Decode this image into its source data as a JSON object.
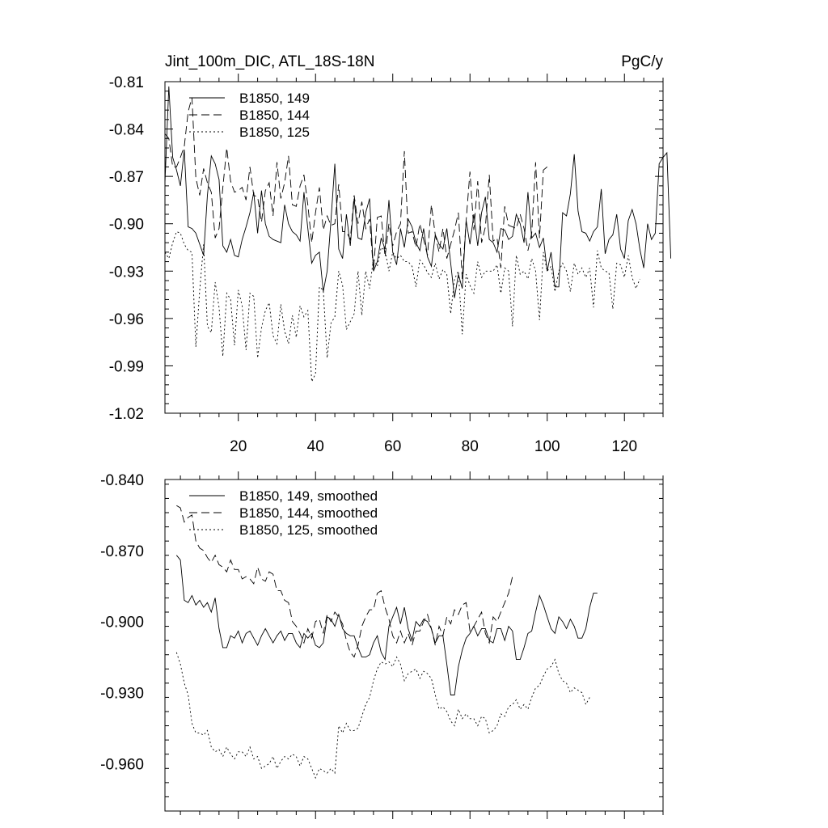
{
  "chart_data": [
    {
      "type": "line",
      "title_left": "Jint_100m_DIC, ATL_18S-18N",
      "title_right": "PgC/y",
      "xlim": [
        1,
        130
      ],
      "ylim": [
        -1.02,
        -0.81
      ],
      "yticks": [
        -0.81,
        -0.84,
        -0.87,
        -0.9,
        -0.93,
        -0.96,
        -0.99,
        -1.02
      ],
      "ytick_labels": [
        "-0.81",
        "-0.84",
        "-0.87",
        "-0.90",
        "-0.93",
        "-0.96",
        "-0.99",
        "-1.02"
      ],
      "xticks": [
        20,
        40,
        60,
        80,
        100,
        120
      ],
      "xtick_labels": [
        "20",
        "40",
        "60",
        "80",
        "100",
        "120"
      ],
      "legend_position": "top-left",
      "series": [
        {
          "name": "B1850, 149",
          "style": "solid",
          "x_start": 1,
          "values": [
            -0.874,
            -0.813,
            -0.858,
            -0.866,
            -0.876,
            -0.853,
            -0.902,
            -0.903,
            -0.906,
            -0.913,
            -0.92,
            -0.882,
            -0.857,
            -0.862,
            -0.872,
            -0.914,
            -0.918,
            -0.91,
            -0.92,
            -0.921,
            -0.91,
            -0.902,
            -0.893,
            -0.88,
            -0.906,
            -0.879,
            -0.9,
            -0.908,
            -0.91,
            -0.911,
            -0.912,
            -0.888,
            -0.9,
            -0.905,
            -0.907,
            -0.911,
            -0.88,
            -0.903,
            -0.925,
            -0.92,
            -0.918,
            -0.943,
            -0.93,
            -0.898,
            -0.862,
            -0.916,
            -0.922,
            -0.894,
            -0.914,
            -0.884,
            -0.909,
            -0.91,
            -0.893,
            -0.884,
            -0.93,
            -0.924,
            -0.909,
            -0.916,
            -0.885,
            -0.918,
            -0.926,
            -0.903,
            -0.915,
            -0.897,
            -0.902,
            -0.912,
            -0.917,
            -0.903,
            -0.921,
            -0.927,
            -0.907,
            -0.913,
            -0.916,
            -0.903,
            -0.925,
            -0.947,
            -0.932,
            -0.941,
            -0.898,
            -0.913,
            -0.894,
            -0.914,
            -0.893,
            -0.883,
            -0.91,
            -0.912,
            -0.918,
            -0.903,
            -0.904,
            -0.91,
            -0.908,
            -0.894,
            -0.9,
            -0.912,
            -0.88,
            -0.909,
            -0.906,
            -0.915,
            -0.909,
            -0.93,
            -0.918,
            -0.94,
            -0.94,
            -0.893,
            -0.895,
            -0.881,
            -0.856,
            -0.892,
            -0.905,
            -0.906,
            -0.911,
            -0.905,
            -0.902,
            -0.878,
            -0.919,
            -0.91,
            -0.907,
            -0.894,
            -0.916,
            -0.922,
            -0.898,
            -0.891,
            -0.9,
            -0.916,
            -0.928,
            -0.9,
            -0.91,
            -0.906,
            -0.862,
            -0.858,
            -0.855,
            -0.922
          ]
        },
        {
          "name": "B1850, 144",
          "style": "dashed",
          "x_start": 1,
          "values": [
            -0.843,
            -0.846,
            -0.864,
            -0.864,
            -0.858,
            -0.851,
            -0.829,
            -0.82,
            -0.871,
            -0.882,
            -0.865,
            -0.874,
            -0.88,
            -0.909,
            -0.903,
            -0.877,
            -0.852,
            -0.873,
            -0.88,
            -0.879,
            -0.877,
            -0.885,
            -0.864,
            -0.882,
            -0.883,
            -0.899,
            -0.879,
            -0.874,
            -0.895,
            -0.861,
            -0.884,
            -0.874,
            -0.857,
            -0.888,
            -0.889,
            -0.876,
            -0.869,
            -0.888,
            -0.912,
            -0.893,
            -0.877,
            -0.904,
            -0.895,
            -0.901,
            -0.9,
            -0.875,
            -0.905,
            -0.905,
            -0.91,
            -0.882,
            -0.9,
            -0.886,
            -0.903,
            -0.897,
            -0.93,
            -0.896,
            -0.895,
            -0.921,
            -0.9,
            -0.914,
            -0.905,
            -0.9,
            -0.854,
            -0.906,
            -0.905,
            -0.915,
            -0.9,
            -0.91,
            -0.92,
            -0.888,
            -0.907,
            -0.918,
            -0.903,
            -0.922,
            -0.913,
            -0.904,
            -0.893,
            -0.935,
            -0.898,
            -0.867,
            -0.904,
            -0.873,
            -0.912,
            -0.902,
            -0.869,
            -0.911,
            -0.909,
            -0.928,
            -0.889,
            -0.901,
            -0.902,
            -0.903,
            -0.894,
            -0.903,
            -0.917,
            -0.906,
            -0.861,
            -0.909,
            -0.866,
            -0.864
          ]
        },
        {
          "name": "B1850, 125",
          "style": "dotted",
          "x_start": 1,
          "values": [
            -0.918,
            -0.922,
            -0.912,
            -0.905,
            -0.906,
            -0.913,
            -0.917,
            -0.918,
            -0.978,
            -0.942,
            -0.913,
            -0.965,
            -0.969,
            -0.937,
            -0.953,
            -0.984,
            -0.944,
            -0.948,
            -0.977,
            -0.942,
            -0.952,
            -0.98,
            -0.944,
            -0.946,
            -0.985,
            -0.966,
            -0.955,
            -0.95,
            -0.971,
            -0.976,
            -0.951,
            -0.968,
            -0.976,
            -0.958,
            -0.972,
            -0.952,
            -0.959,
            -0.955,
            -1.0,
            -0.995,
            -0.94,
            -0.942,
            -0.985,
            -0.963,
            -0.959,
            -0.93,
            -0.939,
            -0.967,
            -0.962,
            -0.957,
            -0.93,
            -0.958,
            -0.93,
            -0.941,
            -0.922,
            -0.927,
            -0.915,
            -0.917,
            -0.93,
            -0.918,
            -0.922,
            -0.92,
            -0.924,
            -0.924,
            -0.927,
            -0.94,
            -0.923,
            -0.926,
            -0.931,
            -0.934,
            -0.925,
            -0.935,
            -0.929,
            -0.932,
            -0.957,
            -0.935,
            -0.93,
            -0.97,
            -0.932,
            -0.939,
            -0.944,
            -0.924,
            -0.934,
            -0.93,
            -0.93,
            -0.93,
            -0.926,
            -0.944,
            -0.928,
            -0.93,
            -0.965,
            -0.92,
            -0.932,
            -0.93,
            -0.935,
            -0.922,
            -0.93,
            -0.961,
            -0.918,
            -0.93,
            -0.927,
            -0.943,
            -0.93,
            -0.925,
            -0.93,
            -0.943,
            -0.925,
            -0.932,
            -0.928,
            -0.934,
            -0.928,
            -0.953,
            -0.917,
            -0.928,
            -0.93,
            -0.931,
            -0.954,
            -0.925,
            -0.926,
            -0.934,
            -0.92,
            -0.934,
            -0.941,
            -0.935
          ]
        }
      ]
    },
    {
      "type": "line",
      "xlim": [
        1,
        130
      ],
      "ylim": [
        -0.98,
        -0.84
      ],
      "yticks": [
        -0.84,
        -0.87,
        -0.9,
        -0.93,
        -0.96
      ],
      "ytick_labels": [
        "-0.840",
        "-0.870",
        "-0.900",
        "-0.930",
        "-0.960"
      ],
      "xticks": [
        20,
        40,
        60,
        80,
        100,
        120
      ],
      "legend_position": "top-left",
      "series": [
        {
          "name": "B1850, 149, smoothed",
          "style": "solid",
          "x_start": 4,
          "values": [
            -0.872,
            -0.874,
            -0.891,
            -0.892,
            -0.889,
            -0.893,
            -0.891,
            -0.894,
            -0.892,
            -0.896,
            -0.89,
            -0.903,
            -0.911,
            -0.911,
            -0.906,
            -0.907,
            -0.904,
            -0.909,
            -0.905,
            -0.904,
            -0.907,
            -0.91,
            -0.906,
            -0.903,
            -0.906,
            -0.909,
            -0.906,
            -0.904,
            -0.908,
            -0.905,
            -0.905,
            -0.909,
            -0.911,
            -0.905,
            -0.907,
            -0.905,
            -0.91,
            -0.911,
            -0.909,
            -0.898,
            -0.899,
            -0.902,
            -0.897,
            -0.903,
            -0.905,
            -0.906,
            -0.906,
            -0.911,
            -0.915,
            -0.915,
            -0.914,
            -0.909,
            -0.906,
            -0.913,
            -0.916,
            -0.902,
            -0.898,
            -0.894,
            -0.901,
            -0.894,
            -0.903,
            -0.908,
            -0.9,
            -0.902,
            -0.899,
            -0.9,
            -0.903,
            -0.909,
            -0.906,
            -0.906,
            -0.918,
            -0.931,
            -0.931,
            -0.919,
            -0.912,
            -0.907,
            -0.905,
            -0.902,
            -0.906,
            -0.903,
            -0.903,
            -0.908,
            -0.909,
            -0.903,
            -0.903,
            -0.908,
            -0.902,
            -0.904,
            -0.916,
            -0.916,
            -0.911,
            -0.905,
            -0.904,
            -0.896,
            -0.889,
            -0.893,
            -0.898,
            -0.903,
            -0.905,
            -0.898,
            -0.9,
            -0.903,
            -0.899,
            -0.902,
            -0.907,
            -0.907,
            -0.903,
            -0.894,
            -0.888,
            -0.888
          ]
        },
        {
          "name": "B1850, 144, smoothed",
          "style": "dashed",
          "x_start": 4,
          "values": [
            -0.851,
            -0.852,
            -0.858,
            -0.856,
            -0.855,
            -0.866,
            -0.869,
            -0.87,
            -0.873,
            -0.875,
            -0.872,
            -0.876,
            -0.877,
            -0.879,
            -0.874,
            -0.878,
            -0.878,
            -0.882,
            -0.881,
            -0.882,
            -0.884,
            -0.877,
            -0.882,
            -0.883,
            -0.879,
            -0.88,
            -0.887,
            -0.887,
            -0.891,
            -0.892,
            -0.9,
            -0.902,
            -0.905,
            -0.909,
            -0.903,
            -0.907,
            -0.9,
            -0.899,
            -0.905,
            -0.897,
            -0.9,
            -0.896,
            -0.898,
            -0.901,
            -0.908,
            -0.913,
            -0.915,
            -0.91,
            -0.902,
            -0.898,
            -0.895,
            -0.895,
            -0.888,
            -0.887,
            -0.894,
            -0.899,
            -0.906,
            -0.909,
            -0.904,
            -0.909,
            -0.905,
            -0.91,
            -0.904,
            -0.904,
            -0.9,
            -0.897,
            -0.903,
            -0.91,
            -0.902,
            -0.906,
            -0.898,
            -0.901,
            -0.895,
            -0.897,
            -0.893,
            -0.892,
            -0.904,
            -0.902,
            -0.899,
            -0.896,
            -0.905,
            -0.909,
            -0.898,
            -0.9,
            -0.896,
            -0.892,
            -0.888,
            -0.881
          ]
        },
        {
          "name": "B1850, 125, smoothed",
          "style": "dotted",
          "x_start": 4,
          "values": [
            -0.913,
            -0.918,
            -0.926,
            -0.931,
            -0.943,
            -0.947,
            -0.947,
            -0.948,
            -0.946,
            -0.953,
            -0.955,
            -0.954,
            -0.957,
            -0.953,
            -0.956,
            -0.958,
            -0.955,
            -0.955,
            -0.957,
            -0.953,
            -0.958,
            -0.957,
            -0.962,
            -0.961,
            -0.96,
            -0.957,
            -0.962,
            -0.959,
            -0.957,
            -0.958,
            -0.956,
            -0.957,
            -0.961,
            -0.957,
            -0.958,
            -0.962,
            -0.966,
            -0.962,
            -0.963,
            -0.964,
            -0.962,
            -0.964,
            -0.944,
            -0.947,
            -0.943,
            -0.946,
            -0.946,
            -0.945,
            -0.94,
            -0.935,
            -0.932,
            -0.925,
            -0.92,
            -0.917,
            -0.918,
            -0.917,
            -0.919,
            -0.915,
            -0.918,
            -0.925,
            -0.922,
            -0.921,
            -0.92,
            -0.924,
            -0.921,
            -0.922,
            -0.924,
            -0.931,
            -0.937,
            -0.936,
            -0.938,
            -0.942,
            -0.944,
            -0.937,
            -0.941,
            -0.939,
            -0.941,
            -0.941,
            -0.944,
            -0.94,
            -0.941,
            -0.947,
            -0.946,
            -0.944,
            -0.939,
            -0.94,
            -0.936,
            -0.935,
            -0.933,
            -0.937,
            -0.935,
            -0.937,
            -0.932,
            -0.928,
            -0.927,
            -0.923,
            -0.92,
            -0.919,
            -0.916,
            -0.922,
            -0.925,
            -0.926,
            -0.93,
            -0.928,
            -0.929,
            -0.93,
            -0.935,
            -0.932
          ]
        }
      ]
    }
  ]
}
